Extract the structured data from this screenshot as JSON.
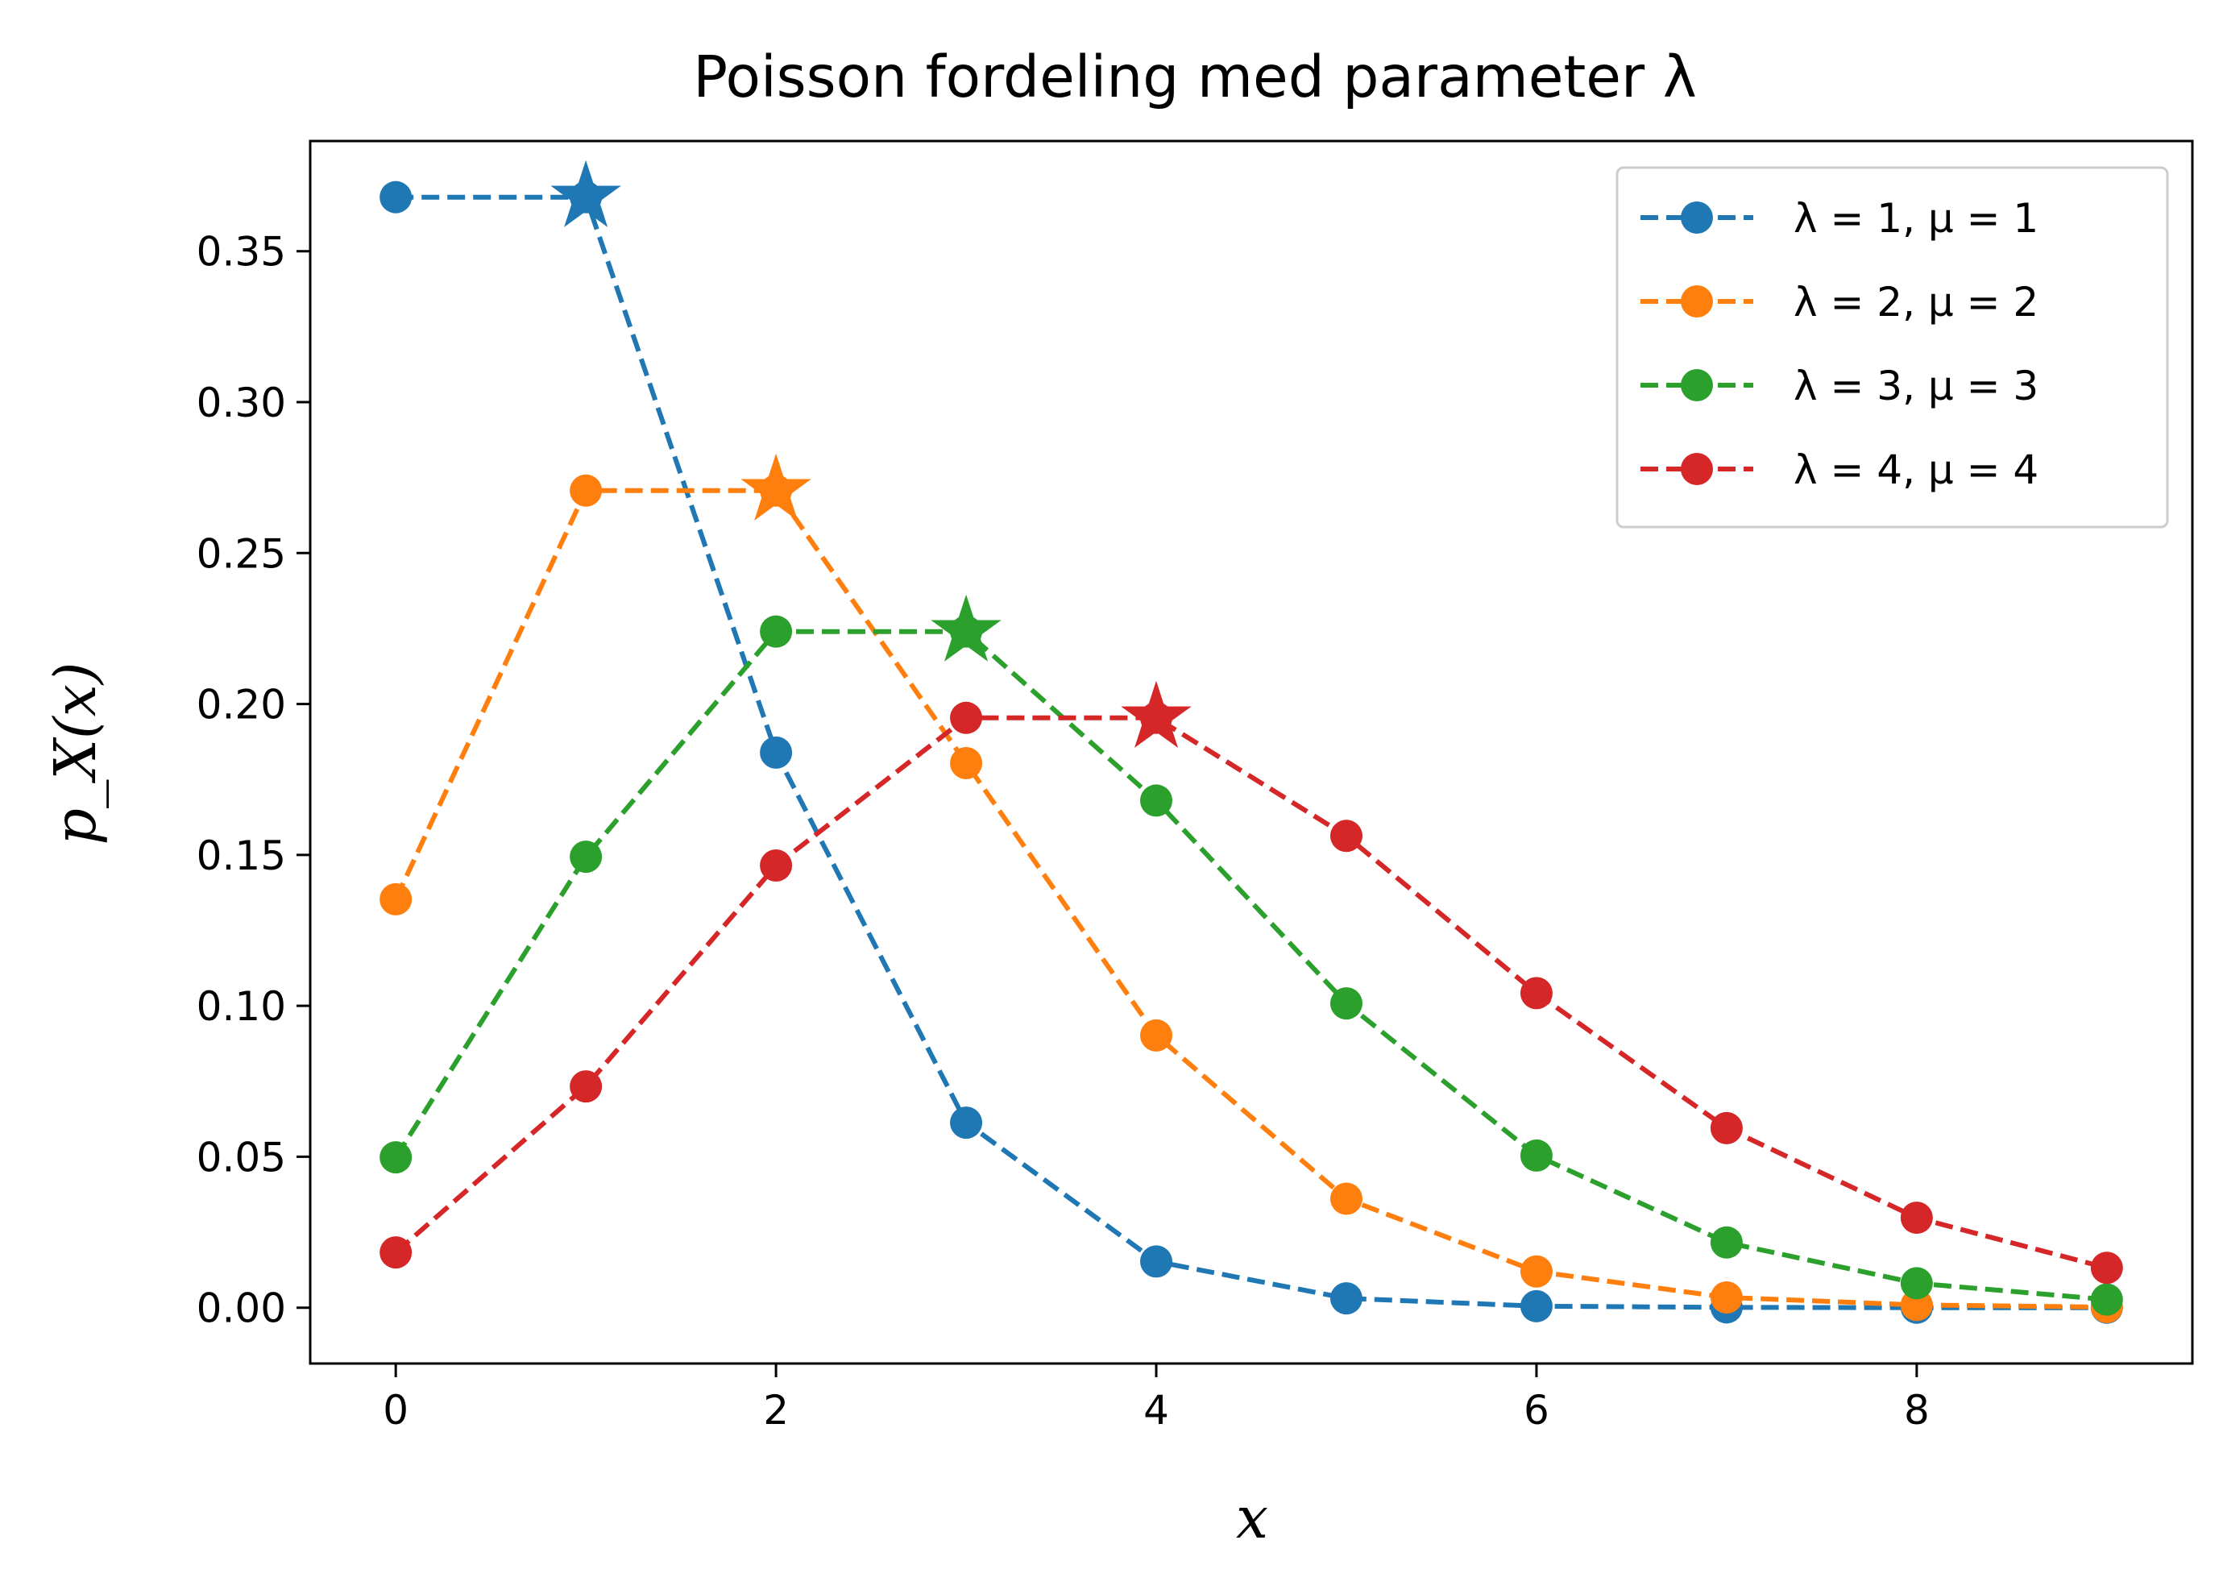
{
  "chart_data": {
    "type": "line",
    "title": "Poisson fordeling med parameter λ",
    "xlabel": "x",
    "ylabel": "p_X(x)",
    "xlim": [
      -0.45,
      9.45
    ],
    "ylim": [
      -0.0185,
      0.3865
    ],
    "x_ticks": [
      0,
      2,
      4,
      6,
      8
    ],
    "x_tick_labels": [
      "0",
      "2",
      "4",
      "6",
      "8"
    ],
    "y_ticks": [
      0.0,
      0.05,
      0.1,
      0.15,
      0.2,
      0.25,
      0.3,
      0.35
    ],
    "y_tick_labels": [
      "0.00",
      "0.05",
      "0.10",
      "0.15",
      "0.20",
      "0.25",
      "0.30",
      "0.35"
    ],
    "grid": false,
    "legend_position": "top-right",
    "line_style": "dashed",
    "marker": "circle",
    "mode_marker": "star",
    "x": [
      0,
      1,
      2,
      3,
      4,
      5,
      6,
      7,
      8,
      9
    ],
    "series": [
      {
        "name": "λ =  1, μ = 1",
        "color": "#1f77b4",
        "values": [
          0.3679,
          0.3679,
          0.1839,
          0.0613,
          0.0153,
          0.0031,
          0.0005,
          0.0001,
          0.0,
          0.0
        ],
        "mode": {
          "x": 1,
          "y": 0.3679
        }
      },
      {
        "name": "λ =  2, μ = 2",
        "color": "#ff7f0e",
        "values": [
          0.1353,
          0.2707,
          0.2707,
          0.1804,
          0.0902,
          0.0361,
          0.012,
          0.0034,
          0.0009,
          0.0002
        ],
        "mode": {
          "x": 2,
          "y": 0.2707
        }
      },
      {
        "name": "λ =  3, μ = 3",
        "color": "#2ca02c",
        "values": [
          0.0498,
          0.1494,
          0.224,
          0.224,
          0.168,
          0.1008,
          0.0504,
          0.0216,
          0.0081,
          0.0027
        ],
        "mode": {
          "x": 3,
          "y": 0.224
        }
      },
      {
        "name": "λ =  4, μ = 4",
        "color": "#d62728",
        "values": [
          0.0183,
          0.0733,
          0.1465,
          0.1954,
          0.1954,
          0.1563,
          0.1042,
          0.0595,
          0.0298,
          0.0132
        ],
        "mode": {
          "x": 4,
          "y": 0.1954
        }
      }
    ]
  }
}
